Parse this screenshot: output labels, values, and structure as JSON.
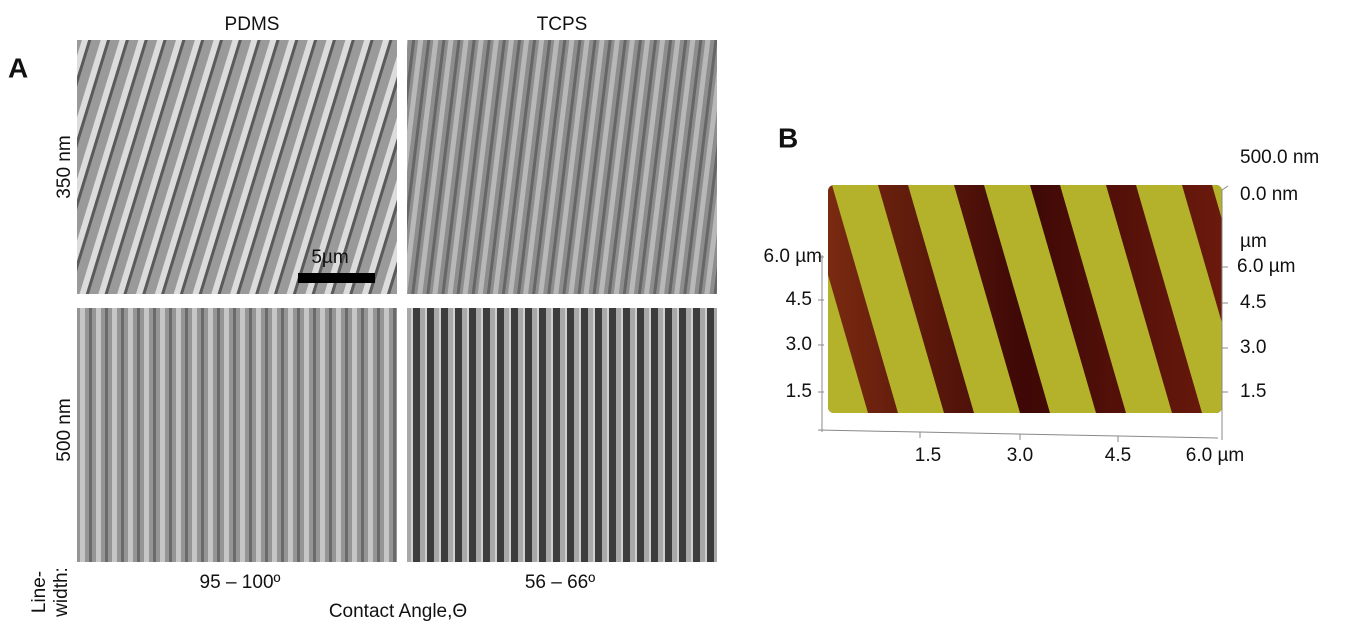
{
  "panel_a": {
    "label": "A",
    "columns": [
      "PDMS",
      "TCPS"
    ],
    "rows": [
      "350 nm",
      "500 nm"
    ],
    "row_axis_label": [
      "Line-",
      "width:"
    ],
    "scale_bar": "5µm",
    "contact_angles": [
      "95 – 100º",
      "56 – 66º"
    ],
    "x_label": "Contact Angle,Θ"
  },
  "panel_b": {
    "label": "B",
    "z_labels": [
      "500.0 nm",
      "0.0 nm"
    ],
    "unit_label": "µm",
    "left_labels": [
      "6.0 µm",
      "4.5",
      "3.0",
      "1.5"
    ],
    "right_labels": [
      "6.0 µm",
      "4.5",
      "3.0",
      "1.5"
    ],
    "bottom_labels": [
      "1.5",
      "3.0",
      "4.5",
      "6.0 µm"
    ]
  }
}
